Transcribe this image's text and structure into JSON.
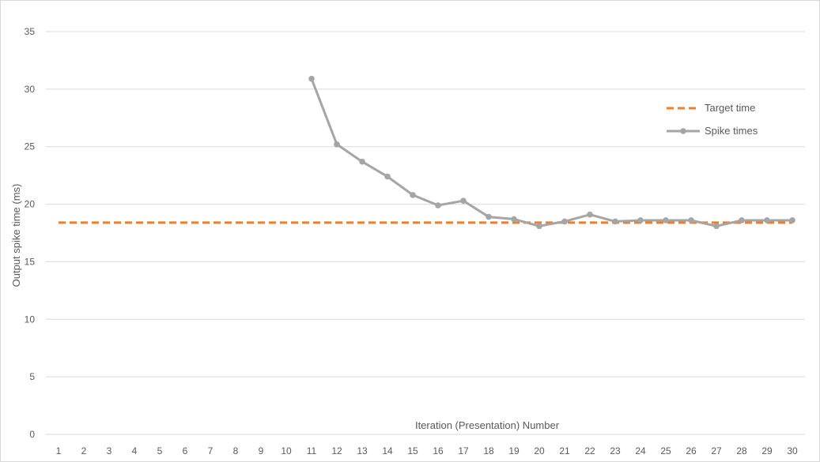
{
  "chart_data": {
    "type": "line",
    "xlabel": "Iteration (Presentation)  Number",
    "ylabel": "Output spike time (ms)",
    "ylim": [
      0,
      35
    ],
    "yticks": [
      0,
      5,
      10,
      15,
      20,
      25,
      30,
      35
    ],
    "categories": [
      "1",
      "2",
      "3",
      "4",
      "5",
      "6",
      "7",
      "8",
      "9",
      "10",
      "11",
      "12",
      "13",
      "14",
      "15",
      "16",
      "17",
      "18",
      "19",
      "20",
      "21",
      "22",
      "23",
      "24",
      "25",
      "26",
      "27",
      "28",
      "29",
      "30"
    ],
    "grid": true,
    "legend_position": "top-right",
    "series": [
      {
        "name": "Target time",
        "style": "dashed",
        "color": "#ed7d31",
        "values": [
          18.4,
          18.4,
          18.4,
          18.4,
          18.4,
          18.4,
          18.4,
          18.4,
          18.4,
          18.4,
          18.4,
          18.4,
          18.4,
          18.4,
          18.4,
          18.4,
          18.4,
          18.4,
          18.4,
          18.4,
          18.4,
          18.4,
          18.4,
          18.4,
          18.4,
          18.4,
          18.4,
          18.4,
          18.4,
          18.4
        ]
      },
      {
        "name": "Spike times",
        "style": "solid-markers",
        "color": "#a5a5a5",
        "values": [
          null,
          null,
          null,
          null,
          null,
          null,
          null,
          null,
          null,
          null,
          30.9,
          25.2,
          23.7,
          22.4,
          20.8,
          19.9,
          20.3,
          18.9,
          18.7,
          18.1,
          18.5,
          19.1,
          18.5,
          18.6,
          18.6,
          18.6,
          18.1,
          18.6,
          18.6,
          18.6
        ]
      }
    ]
  }
}
